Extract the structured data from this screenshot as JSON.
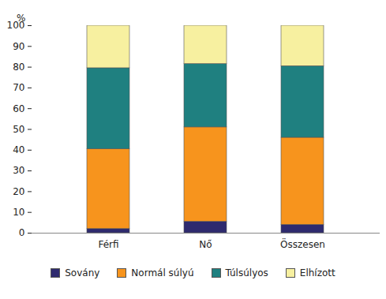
{
  "chart_data": {
    "type": "bar",
    "stacked": true,
    "y_label": "%",
    "categories": [
      "Férfi",
      "Nő",
      "Összesen"
    ],
    "series": [
      {
        "name": "Sovány",
        "color": "#2e2a6e",
        "values": [
          2,
          5.5,
          4
        ]
      },
      {
        "name": "Normál súlyú",
        "color": "#f7941d",
        "values": [
          38.5,
          45.5,
          42
        ]
      },
      {
        "name": "Túlsúlyos",
        "color": "#1f8080",
        "values": [
          39,
          30.5,
          34.5
        ]
      },
      {
        "name": "Elhízott",
        "color": "#f7f0a0",
        "values": [
          20.5,
          18.5,
          19.5
        ]
      }
    ],
    "ylim": [
      0,
      100
    ],
    "yticks": [
      0,
      10,
      20,
      30,
      40,
      50,
      60,
      70,
      80,
      90,
      100
    ],
    "grid": false,
    "legend": "bottom"
  }
}
